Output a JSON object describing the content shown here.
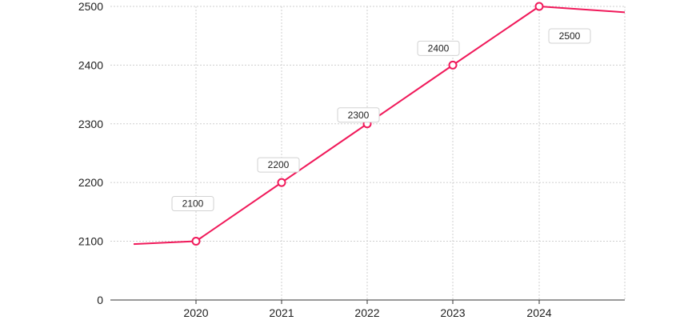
{
  "chart_data": {
    "type": "line",
    "title": "",
    "xlabel": "",
    "ylabel": "",
    "categories": [
      "2020",
      "2021",
      "2022",
      "2023",
      "2024"
    ],
    "y_ticks": [
      "0",
      "2100",
      "2200",
      "2300",
      "2400",
      "2500"
    ],
    "y_range_shown": [
      2100,
      2500
    ],
    "y_axis_break": "0 shown at axis base, scale continues from 2100",
    "series": [
      {
        "points": [
          {
            "x": "2019.3 (partial, left of 2020)",
            "y": 2095
          },
          {
            "x": "2020",
            "y": 2100,
            "marker": true,
            "label": "2100"
          },
          {
            "x": "2021",
            "y": 2200,
            "marker": true,
            "label": "2200"
          },
          {
            "x": "2022",
            "y": 2300,
            "marker": true,
            "label": "2300"
          },
          {
            "x": "2023",
            "y": 2400,
            "marker": true,
            "label": "2400"
          },
          {
            "x": "2024",
            "y": 2500,
            "marker": true,
            "label": "2500"
          },
          {
            "x": "2025 (partial, right edge)",
            "y": 2490
          }
        ],
        "color": "#f0195a"
      }
    ],
    "grid": true,
    "grid_style": "dotted",
    "legend": "none"
  }
}
